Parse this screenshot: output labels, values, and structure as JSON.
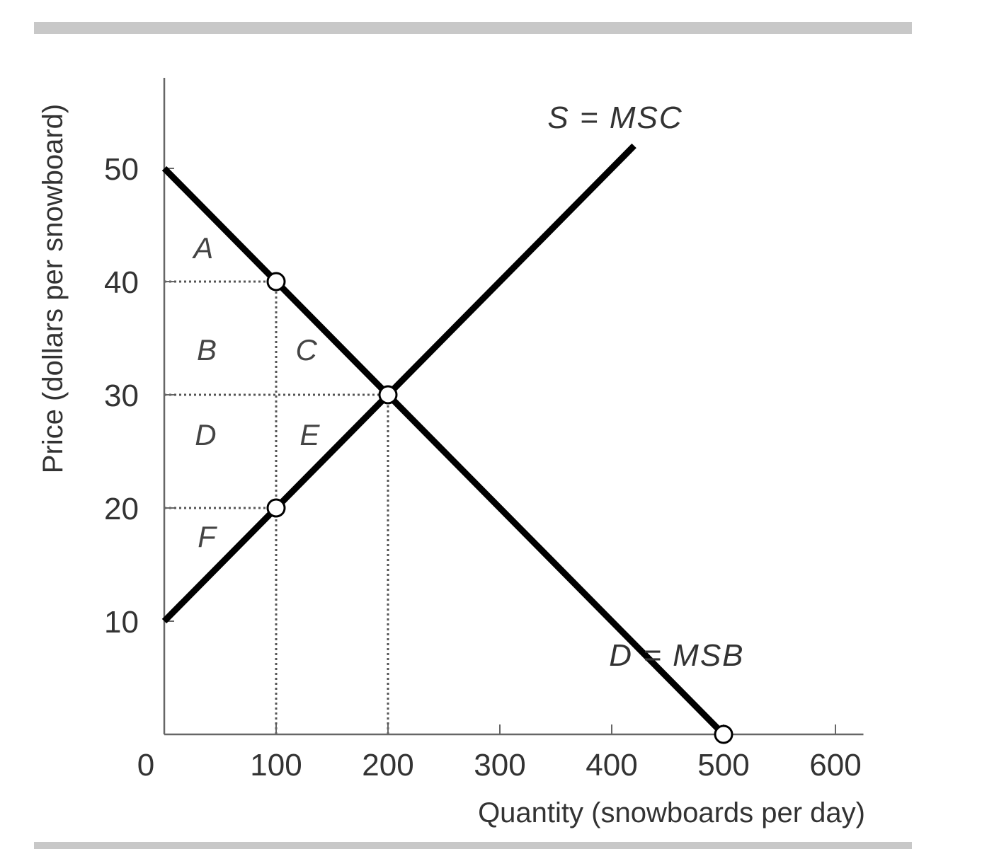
{
  "chart_data": {
    "type": "line",
    "xlabel": "Quantity (snowboards per day)",
    "ylabel": "Price (dollars per snowboard)",
    "xlim": [
      0,
      600
    ],
    "ylim": [
      0,
      58
    ],
    "origin_label": "0",
    "x_ticks": [
      100,
      200,
      300,
      400,
      500,
      600
    ],
    "x_tick_labels": [
      "100",
      "200",
      "300",
      "400",
      "500",
      "600"
    ],
    "y_ticks": [
      10,
      20,
      30,
      40,
      50
    ],
    "y_tick_labels": [
      "10",
      "20",
      "30",
      "40",
      "50"
    ],
    "grid": false,
    "series": [
      {
        "name": "S = MSC",
        "x": [
          0,
          420
        ],
        "y": [
          10,
          52
        ],
        "color": "#000000"
      },
      {
        "name": "D = MSB",
        "x": [
          0,
          500
        ],
        "y": [
          50,
          0
        ],
        "color": "#000000"
      }
    ],
    "points": [
      {
        "x": 100,
        "y": 40
      },
      {
        "x": 200,
        "y": 30
      },
      {
        "x": 100,
        "y": 20
      },
      {
        "x": 500,
        "y": 0
      }
    ],
    "guides": [
      {
        "from": [
          0,
          40
        ],
        "to": [
          100,
          40
        ]
      },
      {
        "from": [
          0,
          30
        ],
        "to": [
          200,
          30
        ]
      },
      {
        "from": [
          0,
          20
        ],
        "to": [
          100,
          20
        ]
      },
      {
        "from": [
          100,
          0
        ],
        "to": [
          100,
          40
        ]
      },
      {
        "from": [
          200,
          0
        ],
        "to": [
          200,
          30
        ]
      }
    ],
    "regions": [
      {
        "label": "A",
        "x": 35,
        "y": 43
      },
      {
        "label": "B",
        "x": 38,
        "y": 34
      },
      {
        "label": "C",
        "x": 127,
        "y": 34
      },
      {
        "label": "D",
        "x": 37,
        "y": 26.5
      },
      {
        "label": "E",
        "x": 130,
        "y": 26.5
      },
      {
        "label": "F",
        "x": 38,
        "y": 17.5
      }
    ]
  }
}
